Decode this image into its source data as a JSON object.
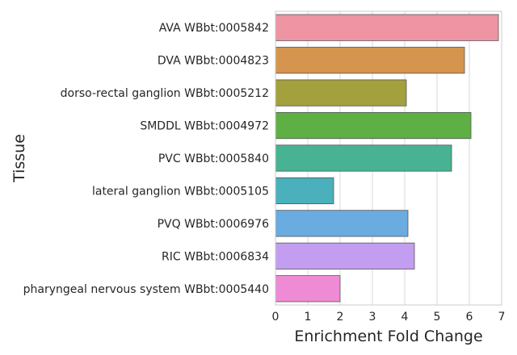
{
  "chart_data": {
    "type": "bar",
    "orientation": "horizontal",
    "categories": [
      "AVA WBbt:0005842",
      "DVA WBbt:0004823",
      "dorso-rectal ganglion WBbt:0005212",
      "SMDDL WBbt:0004972",
      "PVC WBbt:0005840",
      "lateral ganglion WBbt:0005105",
      "PVQ WBbt:0006976",
      "RIC WBbt:0006834",
      "pharyngeal nervous system WBbt:0005440"
    ],
    "values": [
      6.9,
      5.85,
      4.05,
      6.05,
      5.45,
      1.8,
      4.1,
      4.3,
      2.0
    ],
    "colors": [
      "#ef94a2",
      "#d5954e",
      "#a3a03e",
      "#5fb044",
      "#48b393",
      "#4ab0bc",
      "#6aabe0",
      "#c39ef0",
      "#ef8ad4"
    ],
    "xlabel": "Enrichment Fold Change",
    "ylabel": "Tissue",
    "xlim": [
      0,
      7
    ],
    "xticks": [
      0,
      1,
      2,
      3,
      4,
      5,
      6,
      7
    ],
    "grid": "vertical",
    "legend": "none"
  }
}
